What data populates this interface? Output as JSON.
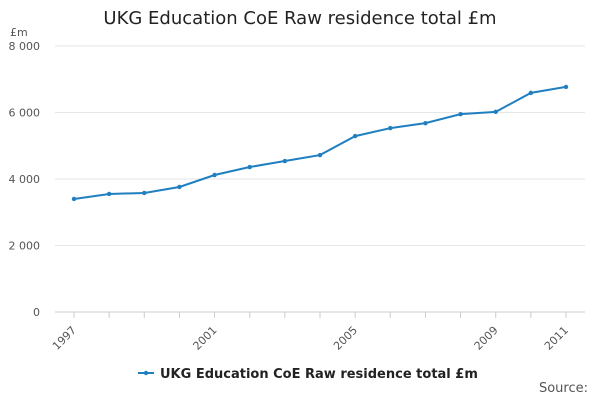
{
  "chart_data": {
    "type": "line",
    "title": "UKG Education CoE Raw residence total £m",
    "y_label": "£m",
    "source": "Source:",
    "x": [
      1997,
      1998,
      1999,
      2000,
      2001,
      2002,
      2003,
      2004,
      2005,
      2006,
      2007,
      2008,
      2009,
      2010,
      2011
    ],
    "series": [
      {
        "name": "UKG Education CoE Raw residence total £m",
        "color": "#1f7fc0",
        "values": [
          3400,
          3550,
          3580,
          3760,
          4120,
          4360,
          4540,
          4720,
          5290,
          5530,
          5680,
          5950,
          6020,
          6590,
          6770
        ]
      }
    ],
    "xlim": [
      1997,
      2011
    ],
    "xticks": [
      1997,
      2001,
      2005,
      2009,
      2011
    ],
    "ylim": [
      0,
      8000
    ],
    "yticks": [
      0,
      {
        "value": 2000,
        "label": "2 000"
      },
      {
        "value": 4000,
        "label": "4 000"
      },
      {
        "value": 6000,
        "label": "6 000"
      },
      {
        "value": 8000,
        "label": "8 000"
      }
    ],
    "grid": true
  }
}
